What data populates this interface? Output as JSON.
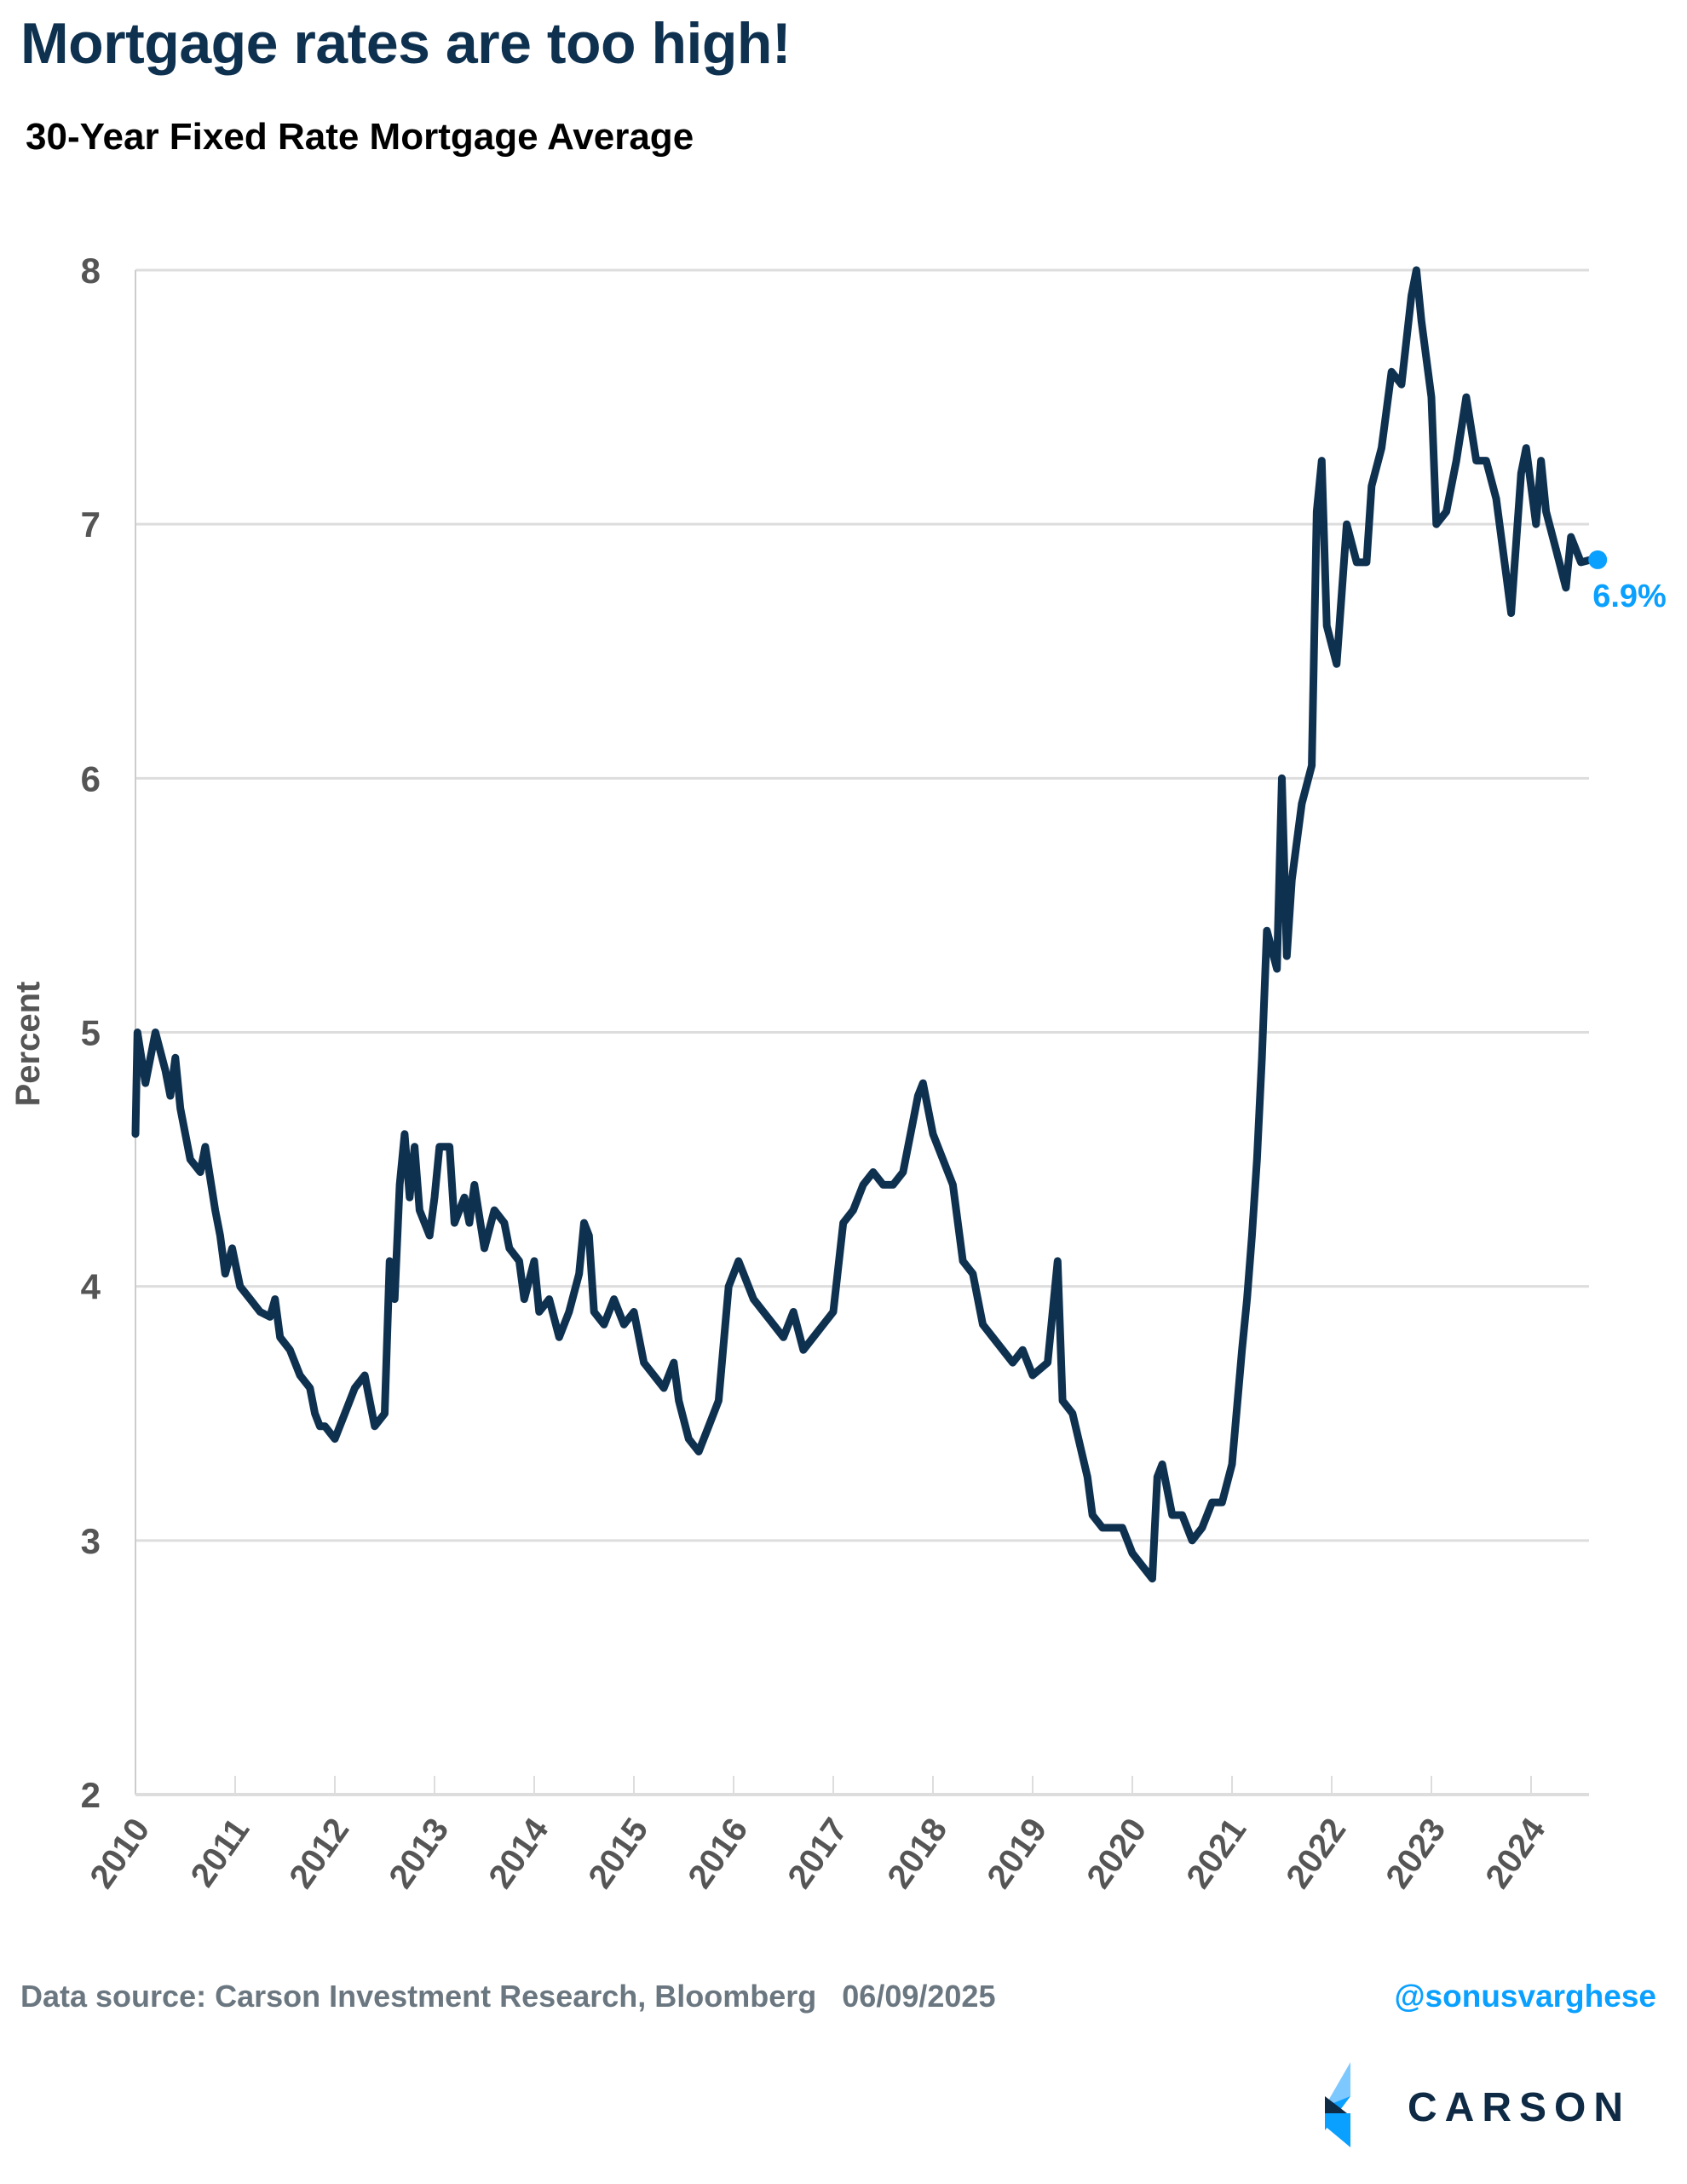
{
  "header": {
    "title": "Mortgage rates are too high!",
    "subtitle": "30-Year Fixed Rate Mortgage Average"
  },
  "footer": {
    "source": "Data source: Carson Investment Research, Bloomberg   06/09/2025",
    "handle": "@sonusvarghese",
    "logo_text": "CARSON"
  },
  "colors": {
    "line": "#0f3150",
    "accent": "#0aa0ff",
    "grid": "#dddddd",
    "title": "#0f3150"
  },
  "chart_data": {
    "type": "line",
    "title": "30-Year Fixed Rate Mortgage Average",
    "xlabel": "",
    "ylabel": "Percent",
    "ylim": [
      2,
      8
    ],
    "xlim": [
      2010,
      2024.66
    ],
    "grid": "horizontal",
    "yticks": [
      "2",
      "3",
      "4",
      "5",
      "6",
      "7",
      "8"
    ],
    "xticks": [
      "2010",
      "2011",
      "2012",
      "2013",
      "2014",
      "2015",
      "2016",
      "2017",
      "2018",
      "2019",
      "2020",
      "2021",
      "2022",
      "2023",
      "2024"
    ],
    "end_label": "6.9%",
    "end_value": 6.86,
    "series": [
      {
        "x": [
          2010.0,
          2010.02,
          2010.1,
          2010.2,
          2010.3,
          2010.35,
          2010.4,
          2010.45,
          2010.55,
          2010.65,
          2010.7,
          2010.8,
          2010.85,
          2010.9,
          2010.97,
          2011.05,
          2011.15,
          2011.25,
          2011.35,
          2011.4,
          2011.45,
          2011.55,
          2011.65,
          2011.75,
          2011.8,
          2011.85,
          2011.9,
          2012.0,
          2012.1,
          2012.2,
          2012.3,
          2012.35,
          2012.4,
          2012.5,
          2012.55,
          2012.6,
          2012.65,
          2012.7,
          2012.75,
          2012.8,
          2012.85,
          2012.95,
          2013.0,
          2013.05,
          2013.15,
          2013.2,
          2013.3,
          2013.35,
          2013.4,
          2013.5,
          2013.6,
          2013.7,
          2013.75,
          2013.85,
          2013.9,
          2014.0,
          2014.05,
          2014.15,
          2014.25,
          2014.35,
          2014.45,
          2014.5,
          2014.55,
          2014.6,
          2014.7,
          2014.8,
          2014.9,
          2015.0,
          2015.1,
          2015.2,
          2015.3,
          2015.4,
          2015.45,
          2015.55,
          2015.65,
          2015.75,
          2015.85,
          2015.95,
          2016.05,
          2016.1,
          2016.2,
          2016.3,
          2016.4,
          2016.5,
          2016.6,
          2016.7,
          2016.8,
          2016.9,
          2017.0,
          2017.1,
          2017.2,
          2017.3,
          2017.4,
          2017.5,
          2017.6,
          2017.7,
          2017.8,
          2017.85,
          2017.9,
          2018.0,
          2018.1,
          2018.2,
          2018.3,
          2018.4,
          2018.5,
          2018.6,
          2018.7,
          2018.8,
          2018.9,
          2019.0,
          2019.15,
          2019.25,
          2019.3,
          2019.4,
          2019.55,
          2019.6,
          2019.7,
          2019.8,
          2019.9,
          2020.0,
          2020.1,
          2020.2,
          2020.25,
          2020.3,
          2020.4,
          2020.5,
          2020.6,
          2020.7,
          2020.8,
          2020.9,
          2021.0,
          2021.1,
          2021.15,
          2021.2,
          2021.25,
          2021.3,
          2021.35,
          2021.45,
          2021.5,
          2021.55,
          2021.6,
          2021.7,
          2021.8,
          2021.85,
          2021.9,
          2021.95,
          2022.05,
          2022.15,
          2022.25,
          2022.35,
          2022.4,
          2022.5,
          2022.6,
          2022.7,
          2022.8,
          2022.85,
          2022.9,
          2023.0,
          2023.05,
          2023.15,
          2023.25,
          2023.35,
          2023.45,
          2023.55,
          2023.65,
          2023.75,
          2023.8,
          2023.9,
          2023.95,
          2024.05,
          2024.1,
          2024.15,
          2024.25,
          2024.35,
          2024.4,
          2024.5,
          2024.6
        ],
        "y": [
          4.6,
          5.0,
          4.8,
          5.0,
          4.85,
          4.75,
          4.9,
          4.7,
          4.5,
          4.45,
          4.55,
          4.3,
          4.2,
          4.05,
          4.15,
          4.0,
          3.95,
          3.9,
          3.88,
          3.95,
          3.8,
          3.75,
          3.65,
          3.6,
          3.5,
          3.45,
          3.45,
          3.4,
          3.5,
          3.6,
          3.65,
          3.55,
          3.45,
          3.5,
          4.1,
          3.95,
          4.4,
          4.6,
          4.35,
          4.55,
          4.3,
          4.2,
          4.35,
          4.55,
          4.55,
          4.25,
          4.35,
          4.25,
          4.4,
          4.15,
          4.3,
          4.25,
          4.15,
          4.1,
          3.95,
          4.1,
          3.9,
          3.95,
          3.8,
          3.9,
          4.05,
          4.25,
          4.2,
          3.9,
          3.85,
          3.95,
          3.85,
          3.9,
          3.7,
          3.65,
          3.6,
          3.7,
          3.55,
          3.4,
          3.35,
          3.45,
          3.55,
          4.0,
          4.1,
          4.05,
          3.95,
          3.9,
          3.85,
          3.8,
          3.9,
          3.75,
          3.8,
          3.85,
          3.9,
          4.25,
          4.3,
          4.4,
          4.45,
          4.4,
          4.4,
          4.45,
          4.65,
          4.75,
          4.8,
          4.6,
          4.5,
          4.4,
          4.1,
          4.05,
          3.85,
          3.8,
          3.75,
          3.7,
          3.75,
          3.65,
          3.7,
          4.1,
          3.55,
          3.5,
          3.25,
          3.1,
          3.05,
          3.05,
          3.05,
          2.95,
          2.9,
          2.85,
          3.25,
          3.3,
          3.1,
          3.1,
          3.0,
          3.05,
          3.15,
          3.15,
          3.3,
          3.75,
          3.95,
          4.2,
          4.5,
          4.9,
          5.4,
          5.25,
          6.0,
          5.3,
          5.6,
          5.9,
          6.05,
          7.05,
          7.25,
          6.6,
          6.45,
          7.0,
          6.85,
          6.85,
          7.15,
          7.3,
          7.6,
          7.55,
          7.9,
          8.0,
          7.8,
          7.5,
          7.0,
          7.05,
          7.25,
          7.5,
          7.25,
          7.25,
          7.1,
          6.8,
          6.65,
          7.2,
          7.3,
          7.0,
          7.25,
          7.05,
          6.9,
          6.75,
          6.95,
          6.85,
          6.86
        ]
      }
    ]
  }
}
